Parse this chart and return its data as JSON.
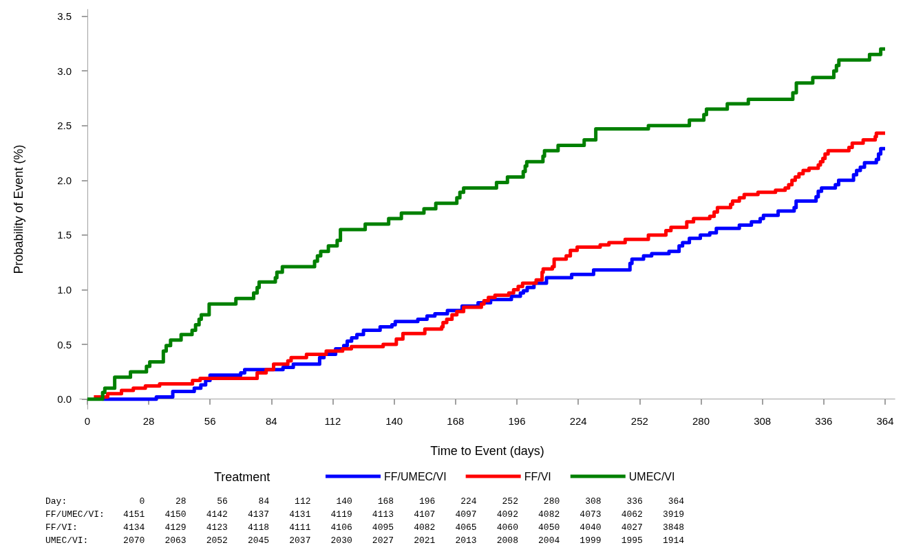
{
  "chart_data": {
    "type": "step",
    "xlabel": "Time to Event (days)",
    "ylabel": "Probability of Event (%)",
    "legend_title": "Treatment",
    "legend": "bottom",
    "grid": false,
    "line_style": "solid",
    "marker": "none",
    "xlim": [
      -3.4,
      368.4
    ],
    "xticks": [
      0,
      28,
      56,
      84,
      112,
      140,
      168,
      196,
      224,
      252,
      280,
      308,
      336,
      364
    ],
    "ylim": [
      -0.09,
      3.56
    ],
    "yticks": [
      {
        "value": 0,
        "label": "0.0"
      },
      0.5,
      {
        "value": 1,
        "label": "1.0"
      },
      1.5,
      {
        "value": 2,
        "label": "2.0"
      },
      2.5,
      {
        "value": 3,
        "label": "3.0"
      },
      3.5
    ],
    "series": [
      {
        "name": "FF/UMEC/VI",
        "color": "#0000ff",
        "x": [
          7,
          31.5,
          39,
          48.8,
          51.8,
          54,
          56,
          70,
          71.8,
          89.3,
          94,
          106,
          108,
          113.3,
          117,
          118.6,
          120.6,
          123,
          126,
          133.6,
          139,
          140.5,
          150.8,
          155,
          158.6,
          164.3,
          171,
          178.3,
          184,
          193.5,
          197.6,
          199,
          200.7,
          203.8,
          209.5,
          221,
          231,
          247.6,
          248.5,
          253.8,
          257.5,
          265.4,
          270,
          271.6,
          274.7,
          279.7,
          284,
          287,
          297.5,
          303,
          307,
          308.5,
          315.2,
          322.5,
          323.4,
          332.5,
          333.5,
          335,
          341.3,
          342.8,
          349.6,
          351,
          352.7,
          354.6,
          360,
          361,
          362,
          364
        ],
        "values": [
          0,
          0.02,
          0.07,
          0.1,
          0.13,
          0.17,
          0.22,
          0.24,
          0.27,
          0.29,
          0.32,
          0.38,
          0.41,
          0.46,
          0.49,
          0.53,
          0.56,
          0.59,
          0.63,
          0.66,
          0.68,
          0.71,
          0.73,
          0.76,
          0.78,
          0.81,
          0.85,
          0.88,
          0.91,
          0.94,
          0.97,
          0.99,
          1.02,
          1.06,
          1.11,
          1.14,
          1.18,
          1.24,
          1.28,
          1.31,
          1.33,
          1.35,
          1.4,
          1.43,
          1.47,
          1.5,
          1.52,
          1.56,
          1.59,
          1.62,
          1.65,
          1.68,
          1.72,
          1.75,
          1.81,
          1.85,
          1.9,
          1.93,
          1.96,
          2,
          2.05,
          2.09,
          2.12,
          2.16,
          2.19,
          2.24,
          2.29,
          2.29
        ]
      },
      {
        "name": "FF/VI",
        "color": "#ff0000",
        "x": [
          3,
          9.3,
          15.6,
          21,
          26.5,
          33,
          48,
          51.5,
          77.5,
          81.6,
          85,
          91.5,
          93,
          100,
          109,
          116.5,
          120.5,
          135,
          141,
          144,
          154,
          161.7,
          162.3,
          164,
          166.4,
          168.6,
          171.7,
          179.8,
          181,
          183,
          186,
          192.3,
          194.5,
          196.6,
          198.6,
          204.8,
          207.5,
          208,
          212.2,
          213,
          218.5,
          220.4,
          223.5,
          234,
          238,
          245.4,
          256,
          264,
          266.3,
          273.5,
          276.6,
          284,
          286,
          287.5,
          293.5,
          294.4,
          297.5,
          299.7,
          306,
          314,
          318.4,
          320,
          321.5,
          323,
          324.7,
          326.6,
          329.3,
          333.5,
          334.5,
          335.6,
          336.6,
          338,
          347.5,
          349,
          354,
          359.5,
          360,
          364
        ],
        "values": [
          0.02,
          0.05,
          0.08,
          0.1,
          0.12,
          0.14,
          0.17,
          0.19,
          0.24,
          0.27,
          0.32,
          0.35,
          0.38,
          0.41,
          0.44,
          0.46,
          0.48,
          0.5,
          0.55,
          0.6,
          0.64,
          0.66,
          0.7,
          0.73,
          0.77,
          0.8,
          0.84,
          0.87,
          0.9,
          0.93,
          0.95,
          0.97,
          1,
          1.03,
          1.06,
          1.09,
          1.16,
          1.19,
          1.21,
          1.28,
          1.31,
          1.36,
          1.39,
          1.41,
          1.43,
          1.46,
          1.5,
          1.54,
          1.57,
          1.62,
          1.65,
          1.67,
          1.71,
          1.75,
          1.78,
          1.81,
          1.84,
          1.87,
          1.89,
          1.91,
          1.93,
          1.96,
          2,
          2.03,
          2.06,
          2.09,
          2.11,
          2.14,
          2.17,
          2.2,
          2.24,
          2.27,
          2.3,
          2.34,
          2.37,
          2.4,
          2.43,
          2.43
        ]
      },
      {
        "name": "UMEC/VI",
        "color": "#008000",
        "x": [
          0,
          7,
          8,
          12.5,
          19.7,
          27,
          28.5,
          34.7,
          36,
          38,
          42.8,
          47.8,
          49.4,
          51,
          52,
          55.6,
          67.8,
          75.9,
          77.5,
          78.4,
          85.8,
          86.5,
          89,
          103.7,
          105,
          106.5,
          110,
          114,
          115.5,
          126.8,
          137.5,
          143.3,
          153.6,
          159,
          168.6,
          170,
          171.7,
          186.7,
          191.7,
          198.9,
          199.8,
          200.5,
          207.9,
          208.6,
          214.8,
          226.7,
          232,
          256,
          274.7,
          281.3,
          282.5,
          292,
          301.6,
          321.9,
          323.5,
          331,
          340.6,
          341.8,
          342.9,
          356.9,
          362,
          364
        ],
        "values": [
          0,
          0.06,
          0.1,
          0.2,
          0.25,
          0.3,
          0.34,
          0.44,
          0.49,
          0.54,
          0.59,
          0.63,
          0.68,
          0.73,
          0.77,
          0.87,
          0.92,
          0.97,
          1.02,
          1.07,
          1.11,
          1.16,
          1.21,
          1.26,
          1.31,
          1.35,
          1.4,
          1.45,
          1.55,
          1.6,
          1.65,
          1.7,
          1.74,
          1.79,
          1.84,
          1.89,
          1.93,
          1.98,
          2.03,
          2.08,
          2.13,
          2.17,
          2.22,
          2.27,
          2.32,
          2.37,
          2.47,
          2.5,
          2.55,
          2.6,
          2.65,
          2.7,
          2.74,
          2.8,
          2.89,
          2.94,
          3,
          3.05,
          3.1,
          3.15,
          3.2,
          3.2
        ]
      }
    ],
    "annotations": [
      "Day: 0 28 56 84 112 140 168 196 224 252 280 308 336 364",
      "FF/UMEC/VI: 4151 4150 4142 4137 4131 4119 4113 4107 4097 4092 4082 4073 4062 3919",
      "FF/VI: 4134 4129 4123 4118 4111 4106 4095 4082 4065 4060 4050 4040 4027 3848",
      "UMEC/VI: 2070 2063 2052 2045 2037 2030 2027 2021 2013 2008 2004 1999 1995 1914"
    ]
  }
}
